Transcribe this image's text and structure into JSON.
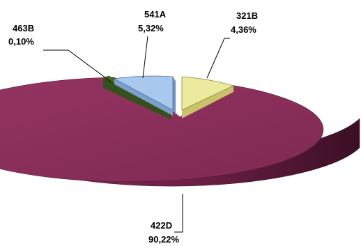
{
  "chart_data": {
    "type": "pie",
    "categories": [
      "422D",
      "463B",
      "541A",
      "321B"
    ],
    "values": [
      90.22,
      0.1,
      5.32,
      4.36
    ],
    "value_labels": [
      "90,22%",
      "0,10%",
      "5,32%",
      "4,36%"
    ],
    "colors": [
      "#8B2F5C",
      "#4A6B1E",
      "#A9C8EE",
      "#ECEA9E"
    ],
    "exploded": [
      "541A",
      "321B"
    ],
    "style": "3d",
    "legend": "none"
  }
}
